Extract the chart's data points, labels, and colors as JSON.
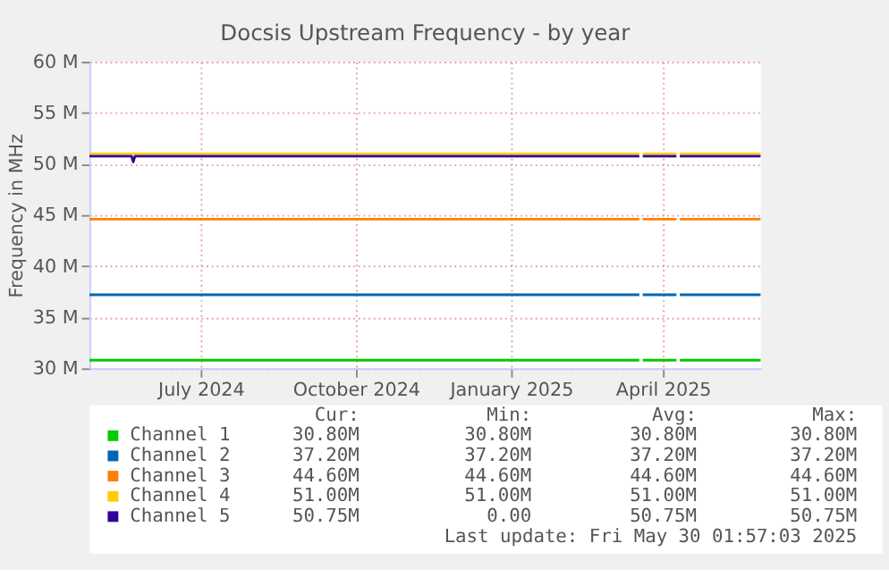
{
  "chart_data": {
    "type": "line",
    "title": "Docsis Upstream Frequency - by year",
    "ylabel": "Frequency in MHz",
    "x": [
      "2024-04-26",
      "2025-03-18",
      "2025-03-19",
      "2025-03-20",
      "2025-04-09",
      "2025-04-10",
      "2025-04-11",
      "2025-05-29"
    ],
    "series": [
      {
        "name": "Channel 1",
        "color": "#00cc00",
        "values": [
          30.8,
          30.8,
          null,
          30.8,
          30.8,
          null,
          30.8,
          30.8
        ]
      },
      {
        "name": "Channel 2",
        "color": "#0066b3",
        "values": [
          37.2,
          37.2,
          null,
          37.2,
          37.2,
          null,
          37.2,
          37.2
        ]
      },
      {
        "name": "Channel 3",
        "color": "#ff8000",
        "values": [
          44.6,
          44.6,
          null,
          44.6,
          44.6,
          null,
          44.6,
          44.6
        ]
      },
      {
        "name": "Channel 4",
        "color": "#ffcc00",
        "values": [
          51.0,
          51.0,
          null,
          51.0,
          51.0,
          null,
          51.0,
          51.0
        ]
      },
      {
        "name": "Channel 5",
        "color": "#330099",
        "x": [
          "2024-04-26",
          "2024-05-21",
          "2024-05-22",
          "2024-05-23",
          "2025-03-18",
          "2025-03-19",
          "2025-03-20",
          "2025-04-09",
          "2025-04-10",
          "2025-04-11",
          "2025-05-29"
        ],
        "values": [
          50.75,
          50.75,
          50.2,
          50.75,
          50.75,
          null,
          50.75,
          50.75,
          null,
          50.75,
          50.75
        ]
      }
    ],
    "xlim": [
      "2024-04-26",
      "2025-05-29"
    ],
    "xticks": [
      {
        "value": "2024-07-01",
        "label": "July 2024"
      },
      {
        "value": "2024-10-01",
        "label": "October 2024"
      },
      {
        "value": "2025-01-01",
        "label": "January 2025"
      },
      {
        "value": "2025-04-01",
        "label": "April 2025"
      }
    ],
    "ylim": [
      30,
      60
    ],
    "yticks": [
      {
        "value": 30,
        "label": "30 M"
      },
      {
        "value": 35,
        "label": "35 M"
      },
      {
        "value": 40,
        "label": "40 M"
      },
      {
        "value": 45,
        "label": "45 M"
      },
      {
        "value": 50,
        "label": "50 M"
      },
      {
        "value": 55,
        "label": "55 M"
      },
      {
        "value": 60,
        "label": "60 M"
      }
    ],
    "grid": true,
    "legend": "bottom",
    "marker": "none",
    "line_style": "solid",
    "annotations": [
      "Cur:",
      "Min:",
      "Avg:",
      "Max:",
      "30.80M",
      "30.80M",
      "30.80M",
      "30.80M",
      "37.20M",
      "37.20M",
      "37.20M",
      "37.20M",
      "44.60M",
      "44.60M",
      "44.60M",
      "44.60M",
      "51.00M",
      "51.00M",
      "51.00M",
      "51.00M",
      "50.75M",
      "0.00",
      "50.75M",
      "50.75M",
      "Last update: Fri May 30 01:57:03 2025"
    ]
  }
}
